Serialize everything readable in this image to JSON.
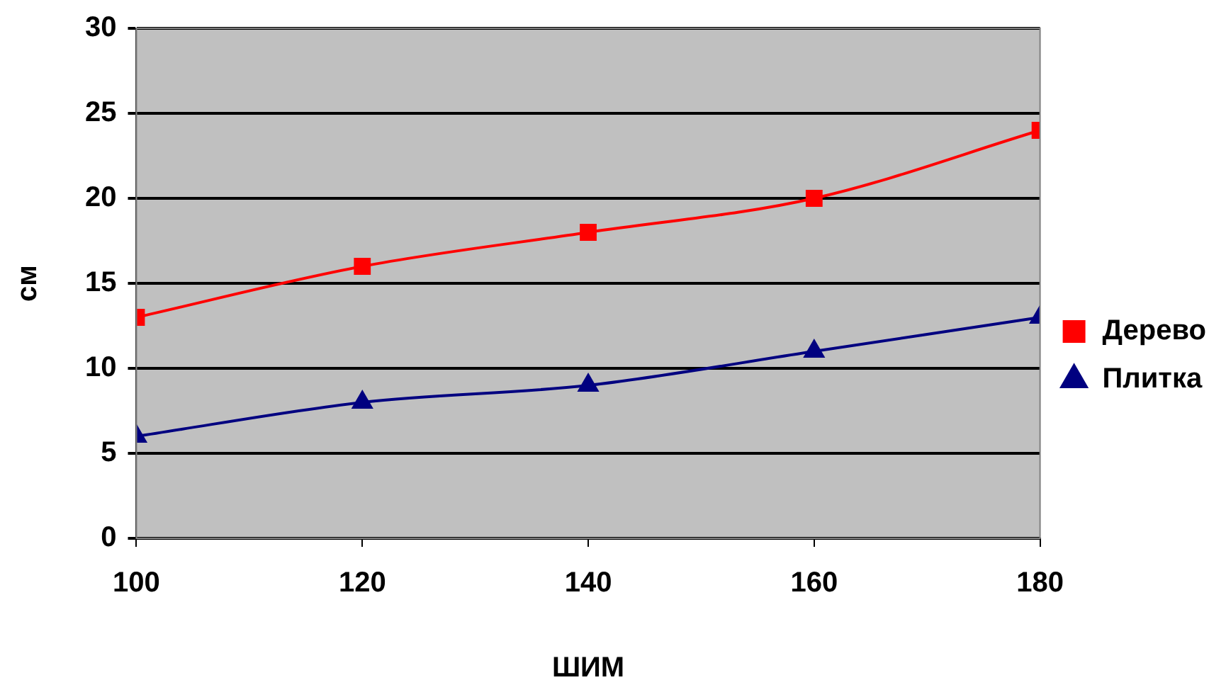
{
  "chart_data": {
    "type": "line",
    "xlabel": "ШИМ",
    "ylabel": "см",
    "x": [
      100,
      120,
      140,
      160,
      180
    ],
    "series": [
      {
        "name": "Дерево",
        "color": "#ff0000",
        "marker": "square",
        "values": [
          13,
          16,
          18,
          20,
          24
        ]
      },
      {
        "name": "Плитка",
        "color": "#000080",
        "marker": "triangle",
        "values": [
          6,
          8,
          9,
          11,
          13
        ]
      }
    ],
    "xlim": [
      100,
      180
    ],
    "xticks": [
      100,
      120,
      140,
      160,
      180
    ],
    "ylim": [
      0,
      30
    ],
    "yticks": [
      0,
      5,
      10,
      15,
      20,
      25,
      30
    ],
    "grid": "y",
    "legend": "right",
    "line_style": "solid"
  }
}
